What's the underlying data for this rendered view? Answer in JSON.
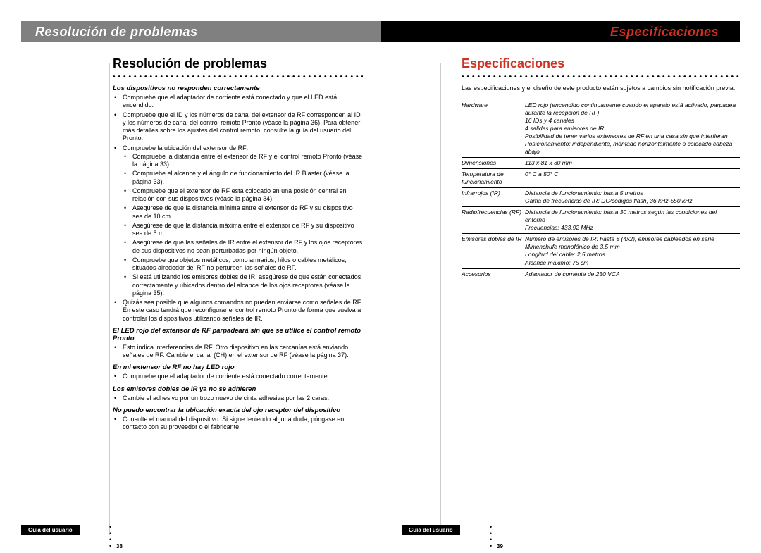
{
  "left": {
    "header": "Resolución de problemas",
    "title": "Resolución de problemas",
    "footer": "Guía del usuario",
    "page_num": "38",
    "blocks": [
      {
        "heading": "Los dispositivos no responden correctamente",
        "bullets": [
          {
            "text": "Compruebe que el adaptador de corriente está conectado y que el LED está encendido."
          },
          {
            "text": "Compruebe que el ID y los números de canal del extensor de RF corresponden al ID y los números de canal del control remoto Pronto (véase la página 36). Para obtener más detalles sobre los ajustes del control remoto, consulte la guía del usuario del Pronto."
          },
          {
            "text": "Compruebe la ubicación del extensor de RF:",
            "sub": [
              "Compruebe la distancia entre el extensor de RF y el control remoto Pronto (véase la página 33).",
              "Compruebe el alcance y el ángulo de funcionamiento del IR Blaster (véase la página 33).",
              "Compruebe que el extensor de RF está colocado en una posición central en relación con sus dispositivos (véase la página 34).",
              "Asegúrese de que la distancia mínima entre el extensor de RF y su dispositivo sea de 10 cm.",
              "Asegúrese de que la distancia máxima entre el extensor de RF y su dispositivo sea de 5 m.",
              "Asegúrese de que las señales de IR entre el extensor de RF y los ojos receptores de sus dispositivos no sean perturbadas por ningún objeto.",
              "Compruebe que objetos metálicos, como armarios, hilos o cables metálicos, situados alrededor del RF no perturben las señales de RF.",
              "Si está utilizando los emisores dobles de IR, asegúrese de que están conectados correctamente y ubicados dentro del alcance de los ojos receptores (véase la página 35)."
            ]
          },
          {
            "text": "Quizás sea posible que algunos comandos no puedan enviarse como señales de RF. En este caso tendrá que reconfigurar el control remoto Pronto de forma que vuelva a controlar los dispositivos utilizando señales de IR."
          }
        ]
      },
      {
        "heading": "El LED rojo del extensor de RF parpadeará sin que se utilice el control remoto Pronto",
        "bullets": [
          {
            "text": "Esto indica interferencias de RF. Otro dispositivo en las cercanías está enviando señales de RF. Cambie el canal (CH) en el extensor de RF (véase la página 37)."
          }
        ]
      },
      {
        "heading": "En mi extensor de RF no hay LED rojo",
        "bullets": [
          {
            "text": "Compruebe que el adaptador de corriente está conectado correctamente."
          }
        ]
      },
      {
        "heading": "Los emisores dobles de IR ya no se adhieren",
        "bullets": [
          {
            "text": "Cambie el adhesivo por un trozo nuevo de cinta adhesiva por las 2 caras."
          }
        ]
      },
      {
        "heading": "No puedo encontrar la ubicación exacta del ojo receptor del dispositivo",
        "bullets": [
          {
            "text": "Consulte el manual del dispositivo. Si sigue teniendo alguna duda, póngase en contacto con su proveedor o el fabricante."
          }
        ]
      }
    ]
  },
  "right": {
    "header": "Especificaciones",
    "title": "Especificaciones",
    "intro": "Las especificaciones y el diseño de este producto están sujetos a cambios sin notificación previa.",
    "footer": "Guía del usuario",
    "page_num": "39",
    "table": [
      {
        "label": "Hardware",
        "value": "LED rojo (encendido continuamente cuando el aparato está activado, parpadea durante la recepción de RF)\n16 IDs y 4 canales\n4 salidas para emisores de IR\nPosibilidad de tener varios extensores de RF en una casa sin que interfieran\nPosicionamiento: independiente, montado horizontalmente o colocado cabeza abajo"
      },
      {
        "label": "Dimensiones",
        "value": "113 x 81 x 30 mm"
      },
      {
        "label": "Temperatura de funcionamiento",
        "value": "0° C a 50° C"
      },
      {
        "label": "Infrarrojos (IR)",
        "value": "Distancia de funcionamiento: hasta 5 metros\nGama de frecuencias de IR: DC/códigos flash, 36 kHz-550 kHz"
      },
      {
        "label": "Radiofrecuencias (RF)",
        "value": "Distancia de funcionamiento: hasta 30 metros según las condiciones del entorno\nFrecuencias: 433,92 MHz"
      },
      {
        "label": "Emisores dobles de IR",
        "value": "Número de emisores de IR: hasta 8 (4x2), emisores cableados en serie\nMinienchufe monofónico de 3,5 mm\nLongitud del cable: 2,5 metros\nAlcance máximo: 75 cm"
      },
      {
        "label": "Accesorios",
        "value": "Adaptador de corriente de 230 VCA"
      }
    ]
  }
}
